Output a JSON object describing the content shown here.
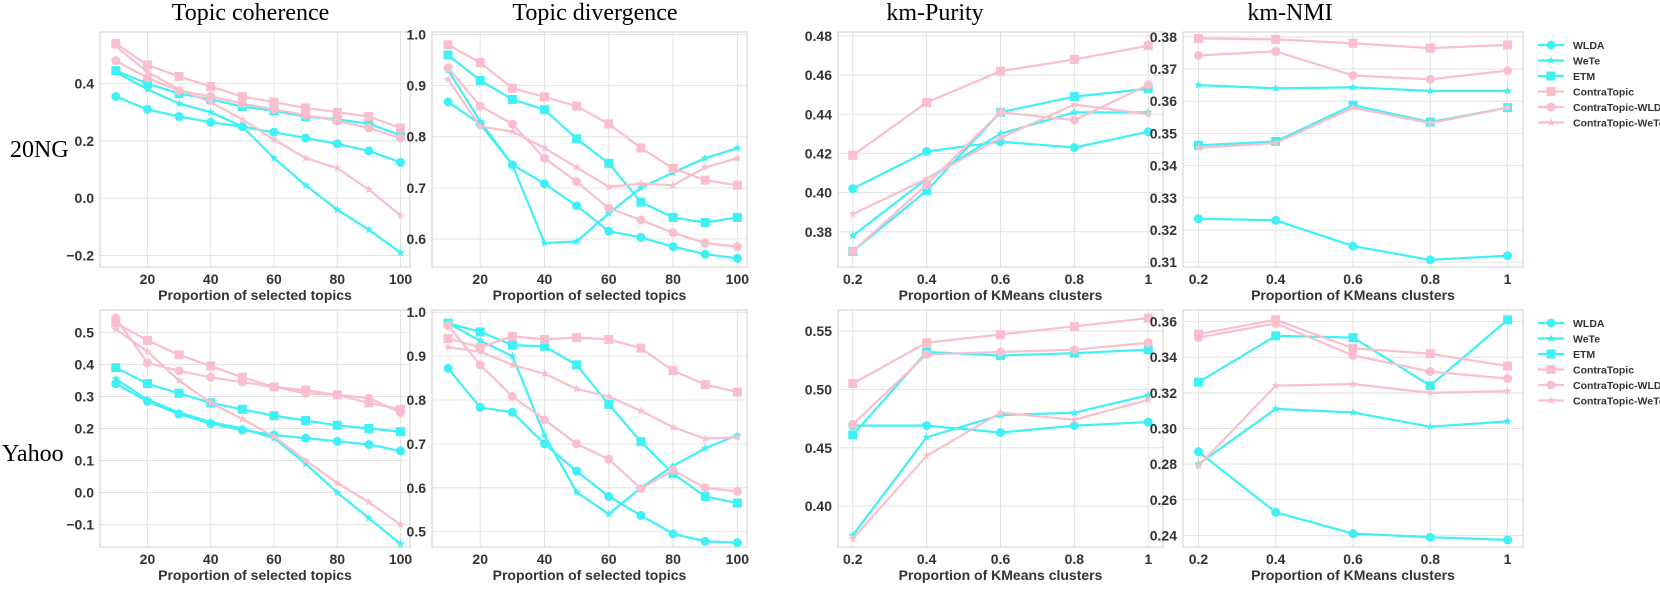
{
  "row_labels": [
    "20NG",
    "Yahoo"
  ],
  "column_titles": [
    "Topic coherence",
    "Topic divergence",
    "km-Purity",
    "km-NMI"
  ],
  "colors": {
    "cyan": "#3ff0f5",
    "pink": "#f9bfcc"
  },
  "series_styles": [
    {
      "name": "WLDA",
      "color": "#3ff0f5",
      "marker": "circle"
    },
    {
      "name": "WeTe",
      "color": "#3ff0f5",
      "marker": "star"
    },
    {
      "name": "ETM",
      "color": "#3ff0f5",
      "marker": "square"
    },
    {
      "name": "ContraTopic",
      "color": "#f9bfcc",
      "marker": "square"
    },
    {
      "name": "ContraTopic-WLDA",
      "color": "#f9bfcc",
      "marker": "circle"
    },
    {
      "name": "ContraTopic-WeTe",
      "color": "#f9bfcc",
      "marker": "star"
    }
  ],
  "chart_data": [
    {
      "type": "line",
      "title": "Topic coherence",
      "row": "20NG",
      "xlabel": "Proportion of selected topics",
      "ylabel": "",
      "x": [
        10,
        20,
        30,
        40,
        50,
        60,
        70,
        80,
        90,
        100
      ],
      "xlim": [
        5,
        103
      ],
      "ylim": [
        -0.24,
        0.58
      ],
      "xticks": [
        20,
        40,
        60,
        80,
        100
      ],
      "yticks": [
        -0.2,
        0.0,
        0.2,
        0.4
      ],
      "ytick_labels": [
        "−0.2",
        "0.0",
        "0.2",
        "0.4"
      ],
      "legend": false,
      "grid": true,
      "series": [
        {
          "name": "WLDA",
          "values": [
            0.355,
            0.31,
            0.285,
            0.265,
            0.25,
            0.23,
            0.21,
            0.19,
            0.165,
            0.125
          ]
        },
        {
          "name": "WeTe",
          "values": [
            0.44,
            0.38,
            0.33,
            0.3,
            0.25,
            0.14,
            0.045,
            -0.04,
            -0.11,
            -0.19
          ]
        },
        {
          "name": "ETM",
          "values": [
            0.445,
            0.4,
            0.365,
            0.345,
            0.32,
            0.305,
            0.285,
            0.275,
            0.26,
            0.22
          ]
        },
        {
          "name": "ContraTopic",
          "values": [
            0.54,
            0.465,
            0.425,
            0.39,
            0.355,
            0.335,
            0.315,
            0.3,
            0.285,
            0.245
          ]
        },
        {
          "name": "ContraTopic-WLDA",
          "values": [
            0.48,
            0.42,
            0.375,
            0.355,
            0.33,
            0.31,
            0.29,
            0.27,
            0.245,
            0.21
          ]
        },
        {
          "name": "ContraTopic-WeTe",
          "values": [
            0.53,
            0.44,
            0.38,
            0.335,
            0.275,
            0.205,
            0.14,
            0.105,
            0.03,
            -0.06
          ]
        }
      ]
    },
    {
      "type": "line",
      "title": "Topic divergence",
      "row": "20NG",
      "xlabel": "Proportion of selected topics",
      "ylabel": "",
      "x": [
        10,
        20,
        30,
        40,
        50,
        60,
        70,
        80,
        90,
        100
      ],
      "xlim": [
        5,
        103
      ],
      "ylim": [
        0.545,
        1.005
      ],
      "xticks": [
        20,
        40,
        60,
        80,
        100
      ],
      "yticks": [
        0.6,
        0.7,
        0.8,
        0.9,
        1.0
      ],
      "ytick_labels": [
        "0.6",
        "0.7",
        "0.8",
        "0.9",
        "1.0"
      ],
      "legend": false,
      "grid": true,
      "series": [
        {
          "name": "WLDA",
          "values": [
            0.868,
            0.825,
            0.745,
            0.708,
            0.665,
            0.615,
            0.603,
            0.585,
            0.57,
            0.562
          ]
        },
        {
          "name": "WeTe",
          "values": [
            0.93,
            0.83,
            0.745,
            0.592,
            0.595,
            0.65,
            0.7,
            0.73,
            0.758,
            0.778
          ]
        },
        {
          "name": "ETM",
          "values": [
            0.96,
            0.91,
            0.873,
            0.853,
            0.796,
            0.748,
            0.672,
            0.642,
            0.632,
            0.642
          ]
        },
        {
          "name": "ContraTopic",
          "values": [
            0.98,
            0.945,
            0.895,
            0.878,
            0.86,
            0.825,
            0.778,
            0.738,
            0.715,
            0.705
          ]
        },
        {
          "name": "ContraTopic-WLDA",
          "values": [
            0.935,
            0.86,
            0.825,
            0.758,
            0.712,
            0.66,
            0.637,
            0.612,
            0.592,
            0.585
          ]
        },
        {
          "name": "ContraTopic-WeTe",
          "values": [
            0.912,
            0.82,
            0.81,
            0.778,
            0.74,
            0.702,
            0.708,
            0.705,
            0.74,
            0.758
          ]
        }
      ]
    },
    {
      "type": "line",
      "title": "km-Purity",
      "row": "20NG",
      "xlabel": "Proportion of KMeans clusters",
      "ylabel": "",
      "x": [
        0.2,
        0.4,
        0.6,
        0.8,
        1.0
      ],
      "xlim": [
        0.16,
        1.04
      ],
      "ylim": [
        0.362,
        0.482
      ],
      "xticks": [
        0.2,
        0.4,
        0.6,
        0.8,
        1.0
      ],
      "yticks": [
        0.38,
        0.4,
        0.42,
        0.44,
        0.46,
        0.48
      ],
      "ytick_labels": [
        "0.38",
        "0.40",
        "0.42",
        "0.44",
        "0.46",
        "0.48"
      ],
      "legend": false,
      "grid": true,
      "series": [
        {
          "name": "WLDA",
          "values": [
            0.402,
            0.421,
            0.426,
            0.423,
            0.431
          ]
        },
        {
          "name": "WeTe",
          "values": [
            0.378,
            0.407,
            0.43,
            0.441,
            0.441
          ]
        },
        {
          "name": "ETM",
          "values": [
            0.37,
            0.401,
            0.441,
            0.449,
            0.453
          ]
        },
        {
          "name": "ContraTopic",
          "values": [
            0.419,
            0.446,
            0.462,
            0.468,
            0.475
          ]
        },
        {
          "name": "ContraTopic-WLDA",
          "values": [
            0.37,
            0.404,
            0.441,
            0.437,
            0.455
          ]
        },
        {
          "name": "ContraTopic-WeTe",
          "values": [
            0.389,
            0.407,
            0.428,
            0.445,
            0.44
          ]
        }
      ]
    },
    {
      "type": "line",
      "title": "km-NMI",
      "row": "20NG",
      "xlabel": "Proportion of KMeans clusters",
      "ylabel": "",
      "x": [
        0.2,
        0.4,
        0.6,
        0.8,
        1.0
      ],
      "xlim": [
        0.16,
        1.04
      ],
      "ylim": [
        0.3085,
        0.3815
      ],
      "xticks": [
        0.2,
        0.4,
        0.6,
        0.8,
        1.0
      ],
      "yticks": [
        0.31,
        0.32,
        0.33,
        0.34,
        0.35,
        0.36,
        0.37,
        0.38
      ],
      "ytick_labels": [
        "0.31",
        "0.32",
        "0.33",
        "0.34",
        "0.35",
        "0.36",
        "0.37",
        "0.38"
      ],
      "legend": true,
      "legend_placement": "right",
      "grid": true,
      "series": [
        {
          "name": "WLDA",
          "values": [
            0.3235,
            0.323,
            0.315,
            0.3107,
            0.312
          ]
        },
        {
          "name": "WeTe",
          "values": [
            0.365,
            0.364,
            0.3643,
            0.3632,
            0.3632
          ]
        },
        {
          "name": "ETM",
          "values": [
            0.3463,
            0.3475,
            0.3588,
            0.3535,
            0.358
          ]
        },
        {
          "name": "ContraTopic",
          "values": [
            0.3795,
            0.3792,
            0.378,
            0.3765,
            0.3775
          ]
        },
        {
          "name": "ContraTopic-WLDA",
          "values": [
            0.3742,
            0.3755,
            0.368,
            0.3668,
            0.3695
          ]
        },
        {
          "name": "ContraTopic-WeTe",
          "values": [
            0.3455,
            0.347,
            0.358,
            0.3532,
            0.358
          ]
        }
      ]
    },
    {
      "type": "line",
      "title": "Topic coherence",
      "row": "Yahoo",
      "xlabel": "Proportion of selected topics",
      "ylabel": "",
      "x": [
        10,
        20,
        30,
        40,
        50,
        60,
        70,
        80,
        90,
        100
      ],
      "xlim": [
        5,
        103
      ],
      "ylim": [
        -0.17,
        0.57
      ],
      "xticks": [
        20,
        40,
        60,
        80,
        100
      ],
      "yticks": [
        -0.1,
        0.0,
        0.1,
        0.2,
        0.3,
        0.4,
        0.5
      ],
      "ytick_labels": [
        "−0.1",
        "0.0",
        "0.1",
        "0.2",
        "0.3",
        "0.4",
        "0.5"
      ],
      "legend": false,
      "grid": true,
      "series": [
        {
          "name": "WLDA",
          "values": [
            0.34,
            0.285,
            0.245,
            0.215,
            0.195,
            0.18,
            0.17,
            0.16,
            0.15,
            0.13
          ]
        },
        {
          "name": "WeTe",
          "values": [
            0.355,
            0.29,
            0.25,
            0.22,
            0.2,
            0.17,
            0.09,
            0.0,
            -0.08,
            -0.16
          ]
        },
        {
          "name": "ETM",
          "values": [
            0.39,
            0.34,
            0.31,
            0.28,
            0.26,
            0.24,
            0.225,
            0.21,
            0.2,
            0.19
          ]
        },
        {
          "name": "ContraTopic",
          "values": [
            0.53,
            0.475,
            0.43,
            0.395,
            0.36,
            0.33,
            0.32,
            0.305,
            0.28,
            0.26
          ]
        },
        {
          "name": "ContraTopic-WLDA",
          "values": [
            0.545,
            0.405,
            0.38,
            0.36,
            0.345,
            0.33,
            0.31,
            0.305,
            0.295,
            0.25
          ]
        },
        {
          "name": "ContraTopic-WeTe",
          "values": [
            0.51,
            0.44,
            0.35,
            0.28,
            0.23,
            0.175,
            0.1,
            0.03,
            -0.03,
            -0.1
          ]
        }
      ]
    },
    {
      "type": "line",
      "title": "Topic divergence",
      "row": "Yahoo",
      "xlabel": "Proportion of selected topics",
      "ylabel": "",
      "x": [
        10,
        20,
        30,
        40,
        50,
        60,
        70,
        80,
        90,
        100
      ],
      "xlim": [
        5,
        103
      ],
      "ylim": [
        0.465,
        1.005
      ],
      "xticks": [
        20,
        40,
        60,
        80,
        100
      ],
      "yticks": [
        0.5,
        0.6,
        0.7,
        0.8,
        0.9,
        1.0
      ],
      "ytick_labels": [
        "0.5",
        "0.6",
        "0.7",
        "0.8",
        "0.9",
        "1.0"
      ],
      "legend": false,
      "grid": true,
      "series": [
        {
          "name": "WLDA",
          "values": [
            0.872,
            0.783,
            0.772,
            0.7,
            0.638,
            0.58,
            0.537,
            0.495,
            0.478,
            0.475
          ]
        },
        {
          "name": "WeTe",
          "values": [
            0.975,
            0.935,
            0.9,
            0.72,
            0.59,
            0.54,
            0.6,
            0.65,
            0.69,
            0.72
          ]
        },
        {
          "name": "ETM",
          "values": [
            0.975,
            0.955,
            0.925,
            0.922,
            0.88,
            0.79,
            0.705,
            0.632,
            0.58,
            0.565
          ]
        },
        {
          "name": "ContraTopic",
          "values": [
            0.94,
            0.92,
            0.945,
            0.938,
            0.942,
            0.938,
            0.918,
            0.867,
            0.835,
            0.818
          ]
        },
        {
          "name": "ContraTopic-WLDA",
          "values": [
            0.97,
            0.88,
            0.808,
            0.755,
            0.7,
            0.665,
            0.598,
            0.64,
            0.6,
            0.592
          ]
        },
        {
          "name": "ContraTopic-WeTe",
          "values": [
            0.92,
            0.91,
            0.88,
            0.86,
            0.825,
            0.808,
            0.775,
            0.738,
            0.712,
            0.715
          ]
        }
      ]
    },
    {
      "type": "line",
      "title": "km-Purity",
      "row": "Yahoo",
      "xlabel": "Proportion of KMeans clusters",
      "ylabel": "",
      "x": [
        0.2,
        0.4,
        0.6,
        0.8,
        1.0
      ],
      "xlim": [
        0.16,
        1.04
      ],
      "ylim": [
        0.365,
        0.568
      ],
      "xticks": [
        0.2,
        0.4,
        0.6,
        0.8,
        1.0
      ],
      "yticks": [
        0.4,
        0.45,
        0.5,
        0.55
      ],
      "ytick_labels": [
        "0.40",
        "0.45",
        "0.50",
        "0.55"
      ],
      "legend": false,
      "grid": true,
      "series": [
        {
          "name": "WLDA",
          "values": [
            0.469,
            0.469,
            0.463,
            0.469,
            0.472
          ]
        },
        {
          "name": "WeTe",
          "values": [
            0.375,
            0.459,
            0.478,
            0.48,
            0.495
          ]
        },
        {
          "name": "ETM",
          "values": [
            0.461,
            0.532,
            0.529,
            0.531,
            0.534
          ]
        },
        {
          "name": "ContraTopic",
          "values": [
            0.505,
            0.54,
            0.547,
            0.554,
            0.561
          ]
        },
        {
          "name": "ContraTopic-WLDA",
          "values": [
            0.47,
            0.53,
            0.532,
            0.534,
            0.54
          ]
        },
        {
          "name": "ContraTopic-WeTe",
          "values": [
            0.372,
            0.443,
            0.48,
            0.474,
            0.491
          ]
        }
      ]
    },
    {
      "type": "line",
      "title": "km-NMI",
      "row": "Yahoo",
      "xlabel": "Proportion of KMeans clusters",
      "ylabel": "",
      "x": [
        0.2,
        0.4,
        0.6,
        0.8,
        1.0
      ],
      "xlim": [
        0.16,
        1.04
      ],
      "ylim": [
        0.2335,
        0.3665
      ],
      "xticks": [
        0.2,
        0.4,
        0.6,
        0.8,
        1.0
      ],
      "yticks": [
        0.24,
        0.26,
        0.28,
        0.3,
        0.32,
        0.34,
        0.36
      ],
      "ytick_labels": [
        "0.24",
        "0.26",
        "0.28",
        "0.30",
        "0.32",
        "0.34",
        "0.36"
      ],
      "legend": true,
      "legend_placement": "right",
      "grid": true,
      "series": [
        {
          "name": "WLDA",
          "values": [
            0.287,
            0.253,
            0.241,
            0.239,
            0.2375
          ]
        },
        {
          "name": "WeTe",
          "values": [
            0.28,
            0.311,
            0.309,
            0.301,
            0.304
          ]
        },
        {
          "name": "ETM",
          "values": [
            0.326,
            0.352,
            0.351,
            0.324,
            0.361
          ]
        },
        {
          "name": "ContraTopic",
          "values": [
            0.353,
            0.361,
            0.345,
            0.342,
            0.335
          ]
        },
        {
          "name": "ContraTopic-WLDA",
          "values": [
            0.351,
            0.359,
            0.341,
            0.332,
            0.328
          ]
        },
        {
          "name": "ContraTopic-WeTe",
          "values": [
            0.279,
            0.324,
            0.325,
            0.32,
            0.321
          ]
        }
      ]
    }
  ]
}
